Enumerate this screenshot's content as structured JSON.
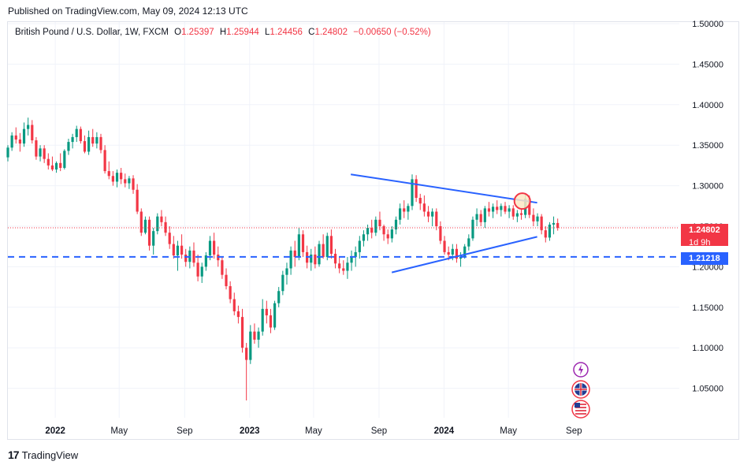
{
  "header": {
    "published": "Published on TradingView.com, May 09, 2024 12:13 UTC"
  },
  "legend": {
    "symbol": "British Pound / U.S. Dollar, 1W, FXCM",
    "o_label": "O",
    "o": "1.25397",
    "h_label": "H",
    "h": "1.25944",
    "l_label": "L",
    "l": "1.24456",
    "c_label": "C",
    "c": "1.24802",
    "change": "−0.00650 (−0.52%)"
  },
  "colors": {
    "up": "#089981",
    "down": "#f23645",
    "trendline": "#2962ff",
    "support": "#2962ff",
    "price_line": "#f23645"
  },
  "price_badge": {
    "value": "1.24802",
    "countdown": "1d 9h"
  },
  "support_badge": {
    "value": "1.21218"
  },
  "footer": {
    "brand": "TradingView"
  },
  "icons": [
    "lightning-icon",
    "uk-flag-icon",
    "us-flag-icon"
  ],
  "chart_data": {
    "type": "candlestick",
    "y_ticks": [
      "1.50000",
      "1.45000",
      "1.40000",
      "1.35000",
      "1.30000",
      "1.25000",
      "1.20000",
      "1.15000",
      "1.10000",
      "1.05000"
    ],
    "ylim": [
      1.025,
      1.505
    ],
    "x_ticks": [
      "2022",
      "May",
      "Sep",
      "2023",
      "May",
      "Sep",
      "2024",
      "May",
      "Sep"
    ],
    "current_price": 1.24802,
    "support_level": 1.21218,
    "upper_trendline": {
      "from": {
        "date": "2023-07-10",
        "price": 1.314
      },
      "to": {
        "date": "2024-06-24",
        "price": 1.279
      }
    },
    "lower_trendline": {
      "from": {
        "date": "2023-09-25",
        "price": 1.193
      },
      "to": {
        "date": "2024-06-24",
        "price": 1.237
      }
    },
    "highlight_circle": {
      "date": "2024-05-27",
      "price": 1.281
    },
    "candles": [
      {
        "o": 1.335,
        "h": 1.35,
        "l": 1.33,
        "c": 1.347
      },
      {
        "o": 1.347,
        "h": 1.366,
        "l": 1.343,
        "c": 1.362
      },
      {
        "o": 1.362,
        "h": 1.372,
        "l": 1.352,
        "c": 1.357
      },
      {
        "o": 1.357,
        "h": 1.365,
        "l": 1.342,
        "c": 1.352
      },
      {
        "o": 1.352,
        "h": 1.378,
        "l": 1.348,
        "c": 1.37
      },
      {
        "o": 1.37,
        "h": 1.384,
        "l": 1.362,
        "c": 1.375
      },
      {
        "o": 1.375,
        "h": 1.381,
        "l": 1.352,
        "c": 1.356
      },
      {
        "o": 1.356,
        "h": 1.36,
        "l": 1.332,
        "c": 1.336
      },
      {
        "o": 1.336,
        "h": 1.35,
        "l": 1.33,
        "c": 1.346
      },
      {
        "o": 1.346,
        "h": 1.35,
        "l": 1.328,
        "c": 1.333
      },
      {
        "o": 1.333,
        "h": 1.34,
        "l": 1.32,
        "c": 1.325
      },
      {
        "o": 1.325,
        "h": 1.336,
        "l": 1.318,
        "c": 1.32
      },
      {
        "o": 1.32,
        "h": 1.33,
        "l": 1.316,
        "c": 1.328
      },
      {
        "o": 1.328,
        "h": 1.34,
        "l": 1.318,
        "c": 1.322
      },
      {
        "o": 1.322,
        "h": 1.345,
        "l": 1.32,
        "c": 1.343
      },
      {
        "o": 1.343,
        "h": 1.358,
        "l": 1.338,
        "c": 1.354
      },
      {
        "o": 1.354,
        "h": 1.364,
        "l": 1.346,
        "c": 1.36
      },
      {
        "o": 1.36,
        "h": 1.374,
        "l": 1.354,
        "c": 1.37
      },
      {
        "o": 1.37,
        "h": 1.373,
        "l": 1.352,
        "c": 1.355
      },
      {
        "o": 1.355,
        "h": 1.362,
        "l": 1.34,
        "c": 1.342
      },
      {
        "o": 1.342,
        "h": 1.368,
        "l": 1.338,
        "c": 1.36
      },
      {
        "o": 1.36,
        "h": 1.37,
        "l": 1.348,
        "c": 1.352
      },
      {
        "o": 1.352,
        "h": 1.366,
        "l": 1.346,
        "c": 1.36
      },
      {
        "o": 1.36,
        "h": 1.364,
        "l": 1.34,
        "c": 1.344
      },
      {
        "o": 1.344,
        "h": 1.35,
        "l": 1.315,
        "c": 1.318
      },
      {
        "o": 1.318,
        "h": 1.33,
        "l": 1.308,
        "c": 1.312
      },
      {
        "o": 1.312,
        "h": 1.318,
        "l": 1.3,
        "c": 1.305
      },
      {
        "o": 1.305,
        "h": 1.32,
        "l": 1.298,
        "c": 1.316
      },
      {
        "o": 1.316,
        "h": 1.322,
        "l": 1.302,
        "c": 1.308
      },
      {
        "o": 1.308,
        "h": 1.315,
        "l": 1.298,
        "c": 1.303
      },
      {
        "o": 1.303,
        "h": 1.312,
        "l": 1.296,
        "c": 1.309
      },
      {
        "o": 1.309,
        "h": 1.313,
        "l": 1.29,
        "c": 1.295
      },
      {
        "o": 1.295,
        "h": 1.302,
        "l": 1.265,
        "c": 1.268
      },
      {
        "o": 1.268,
        "h": 1.272,
        "l": 1.238,
        "c": 1.242
      },
      {
        "o": 1.242,
        "h": 1.262,
        "l": 1.24,
        "c": 1.258
      },
      {
        "o": 1.258,
        "h": 1.262,
        "l": 1.22,
        "c": 1.226
      },
      {
        "o": 1.226,
        "h": 1.248,
        "l": 1.215,
        "c": 1.244
      },
      {
        "o": 1.244,
        "h": 1.266,
        "l": 1.24,
        "c": 1.262
      },
      {
        "o": 1.262,
        "h": 1.27,
        "l": 1.25,
        "c": 1.255
      },
      {
        "o": 1.255,
        "h": 1.262,
        "l": 1.238,
        "c": 1.242
      },
      {
        "o": 1.242,
        "h": 1.25,
        "l": 1.222,
        "c": 1.228
      },
      {
        "o": 1.228,
        "h": 1.238,
        "l": 1.21,
        "c": 1.214
      },
      {
        "o": 1.214,
        "h": 1.232,
        "l": 1.195,
        "c": 1.226
      },
      {
        "o": 1.226,
        "h": 1.24,
        "l": 1.21,
        "c": 1.215
      },
      {
        "o": 1.215,
        "h": 1.222,
        "l": 1.2,
        "c": 1.206
      },
      {
        "o": 1.206,
        "h": 1.225,
        "l": 1.198,
        "c": 1.22
      },
      {
        "o": 1.22,
        "h": 1.23,
        "l": 1.2,
        "c": 1.205
      },
      {
        "o": 1.205,
        "h": 1.215,
        "l": 1.182,
        "c": 1.188
      },
      {
        "o": 1.188,
        "h": 1.205,
        "l": 1.18,
        "c": 1.2
      },
      {
        "o": 1.2,
        "h": 1.218,
        "l": 1.195,
        "c": 1.214
      },
      {
        "o": 1.214,
        "h": 1.238,
        "l": 1.208,
        "c": 1.232
      },
      {
        "o": 1.232,
        "h": 1.242,
        "l": 1.21,
        "c": 1.215
      },
      {
        "o": 1.215,
        "h": 1.225,
        "l": 1.2,
        "c": 1.208
      },
      {
        "o": 1.208,
        "h": 1.212,
        "l": 1.185,
        "c": 1.19
      },
      {
        "o": 1.19,
        "h": 1.198,
        "l": 1.172,
        "c": 1.176
      },
      {
        "o": 1.176,
        "h": 1.182,
        "l": 1.155,
        "c": 1.16
      },
      {
        "o": 1.16,
        "h": 1.168,
        "l": 1.14,
        "c": 1.145
      },
      {
        "o": 1.145,
        "h": 1.152,
        "l": 1.13,
        "c": 1.138
      },
      {
        "o": 1.138,
        "h": 1.148,
        "l": 1.094,
        "c": 1.1
      },
      {
        "o": 1.1,
        "h": 1.106,
        "l": 1.035,
        "c": 1.085
      },
      {
        "o": 1.085,
        "h": 1.128,
        "l": 1.08,
        "c": 1.12
      },
      {
        "o": 1.12,
        "h": 1.13,
        "l": 1.105,
        "c": 1.11
      },
      {
        "o": 1.11,
        "h": 1.125,
        "l": 1.1,
        "c": 1.12
      },
      {
        "o": 1.12,
        "h": 1.16,
        "l": 1.115,
        "c": 1.148
      },
      {
        "o": 1.148,
        "h": 1.158,
        "l": 1.13,
        "c": 1.14
      },
      {
        "o": 1.14,
        "h": 1.148,
        "l": 1.118,
        "c": 1.125
      },
      {
        "o": 1.125,
        "h": 1.158,
        "l": 1.122,
        "c": 1.155
      },
      {
        "o": 1.155,
        "h": 1.175,
        "l": 1.15,
        "c": 1.17
      },
      {
        "o": 1.17,
        "h": 1.195,
        "l": 1.165,
        "c": 1.19
      },
      {
        "o": 1.19,
        "h": 1.205,
        "l": 1.178,
        "c": 1.198
      },
      {
        "o": 1.198,
        "h": 1.225,
        "l": 1.19,
        "c": 1.22
      },
      {
        "o": 1.22,
        "h": 1.232,
        "l": 1.2,
        "c": 1.212
      },
      {
        "o": 1.212,
        "h": 1.248,
        "l": 1.208,
        "c": 1.24
      },
      {
        "o": 1.24,
        "h": 1.245,
        "l": 1.212,
        "c": 1.218
      },
      {
        "o": 1.218,
        "h": 1.226,
        "l": 1.198,
        "c": 1.205
      },
      {
        "o": 1.205,
        "h": 1.222,
        "l": 1.195,
        "c": 1.215
      },
      {
        "o": 1.215,
        "h": 1.225,
        "l": 1.198,
        "c": 1.203
      },
      {
        "o": 1.203,
        "h": 1.232,
        "l": 1.2,
        "c": 1.228
      },
      {
        "o": 1.228,
        "h": 1.24,
        "l": 1.21,
        "c": 1.212
      },
      {
        "o": 1.212,
        "h": 1.242,
        "l": 1.208,
        "c": 1.238
      },
      {
        "o": 1.238,
        "h": 1.246,
        "l": 1.21,
        "c": 1.216
      },
      {
        "o": 1.216,
        "h": 1.222,
        "l": 1.198,
        "c": 1.204
      },
      {
        "o": 1.204,
        "h": 1.212,
        "l": 1.192,
        "c": 1.198
      },
      {
        "o": 1.198,
        "h": 1.208,
        "l": 1.19,
        "c": 1.195
      },
      {
        "o": 1.195,
        "h": 1.212,
        "l": 1.185,
        "c": 1.205
      },
      {
        "o": 1.205,
        "h": 1.22,
        "l": 1.195,
        "c": 1.212
      },
      {
        "o": 1.212,
        "h": 1.225,
        "l": 1.2,
        "c": 1.218
      },
      {
        "o": 1.218,
        "h": 1.238,
        "l": 1.21,
        "c": 1.232
      },
      {
        "o": 1.232,
        "h": 1.245,
        "l": 1.225,
        "c": 1.24
      },
      {
        "o": 1.24,
        "h": 1.252,
        "l": 1.232,
        "c": 1.248
      },
      {
        "o": 1.248,
        "h": 1.258,
        "l": 1.235,
        "c": 1.242
      },
      {
        "o": 1.242,
        "h": 1.262,
        "l": 1.238,
        "c": 1.258
      },
      {
        "o": 1.258,
        "h": 1.268,
        "l": 1.245,
        "c": 1.25
      },
      {
        "o": 1.25,
        "h": 1.252,
        "l": 1.232,
        "c": 1.24
      },
      {
        "o": 1.24,
        "h": 1.246,
        "l": 1.228,
        "c": 1.235
      },
      {
        "o": 1.235,
        "h": 1.25,
        "l": 1.23,
        "c": 1.246
      },
      {
        "o": 1.246,
        "h": 1.262,
        "l": 1.24,
        "c": 1.258
      },
      {
        "o": 1.258,
        "h": 1.278,
        "l": 1.252,
        "c": 1.272
      },
      {
        "o": 1.272,
        "h": 1.282,
        "l": 1.26,
        "c": 1.268
      },
      {
        "o": 1.268,
        "h": 1.278,
        "l": 1.258,
        "c": 1.275
      },
      {
        "o": 1.275,
        "h": 1.314,
        "l": 1.27,
        "c": 1.308
      },
      {
        "o": 1.308,
        "h": 1.313,
        "l": 1.28,
        "c": 1.285
      },
      {
        "o": 1.285,
        "h": 1.29,
        "l": 1.27,
        "c": 1.278
      },
      {
        "o": 1.278,
        "h": 1.288,
        "l": 1.262,
        "c": 1.268
      },
      {
        "o": 1.268,
        "h": 1.275,
        "l": 1.255,
        "c": 1.262
      },
      {
        "o": 1.262,
        "h": 1.272,
        "l": 1.25,
        "c": 1.268
      },
      {
        "o": 1.268,
        "h": 1.272,
        "l": 1.245,
        "c": 1.25
      },
      {
        "o": 1.25,
        "h": 1.256,
        "l": 1.228,
        "c": 1.232
      },
      {
        "o": 1.232,
        "h": 1.238,
        "l": 1.215,
        "c": 1.218
      },
      {
        "o": 1.218,
        "h": 1.225,
        "l": 1.208,
        "c": 1.215
      },
      {
        "o": 1.215,
        "h": 1.228,
        "l": 1.208,
        "c": 1.222
      },
      {
        "o": 1.222,
        "h": 1.228,
        "l": 1.205,
        "c": 1.21
      },
      {
        "o": 1.21,
        "h": 1.218,
        "l": 1.2,
        "c": 1.212
      },
      {
        "o": 1.212,
        "h": 1.228,
        "l": 1.21,
        "c": 1.225
      },
      {
        "o": 1.225,
        "h": 1.24,
        "l": 1.22,
        "c": 1.235
      },
      {
        "o": 1.235,
        "h": 1.262,
        "l": 1.232,
        "c": 1.258
      },
      {
        "o": 1.258,
        "h": 1.272,
        "l": 1.25,
        "c": 1.265
      },
      {
        "o": 1.265,
        "h": 1.27,
        "l": 1.25,
        "c": 1.255
      },
      {
        "o": 1.255,
        "h": 1.275,
        "l": 1.248,
        "c": 1.272
      },
      {
        "o": 1.272,
        "h": 1.28,
        "l": 1.262,
        "c": 1.268
      },
      {
        "o": 1.268,
        "h": 1.278,
        "l": 1.26,
        "c": 1.274
      },
      {
        "o": 1.274,
        "h": 1.282,
        "l": 1.265,
        "c": 1.27
      },
      {
        "o": 1.27,
        "h": 1.278,
        "l": 1.262,
        "c": 1.275
      },
      {
        "o": 1.275,
        "h": 1.28,
        "l": 1.265,
        "c": 1.268
      },
      {
        "o": 1.268,
        "h": 1.276,
        "l": 1.26,
        "c": 1.272
      },
      {
        "o": 1.272,
        "h": 1.276,
        "l": 1.258,
        "c": 1.262
      },
      {
        "o": 1.262,
        "h": 1.27,
        "l": 1.255,
        "c": 1.266
      },
      {
        "o": 1.266,
        "h": 1.272,
        "l": 1.258,
        "c": 1.264
      },
      {
        "o": 1.264,
        "h": 1.29,
        "l": 1.26,
        "c": 1.284
      },
      {
        "o": 1.284,
        "h": 1.288,
        "l": 1.26,
        "c": 1.264
      },
      {
        "o": 1.264,
        "h": 1.272,
        "l": 1.25,
        "c": 1.256
      },
      {
        "o": 1.256,
        "h": 1.266,
        "l": 1.25,
        "c": 1.262
      },
      {
        "o": 1.262,
        "h": 1.265,
        "l": 1.24,
        "c": 1.245
      },
      {
        "o": 1.245,
        "h": 1.25,
        "l": 1.23,
        "c": 1.236
      },
      {
        "o": 1.236,
        "h": 1.255,
        "l": 1.232,
        "c": 1.252
      },
      {
        "o": 1.252,
        "h": 1.262,
        "l": 1.24,
        "c": 1.254
      },
      {
        "o": 1.25397,
        "h": 1.25944,
        "l": 1.24456,
        "c": 1.24802
      }
    ]
  }
}
